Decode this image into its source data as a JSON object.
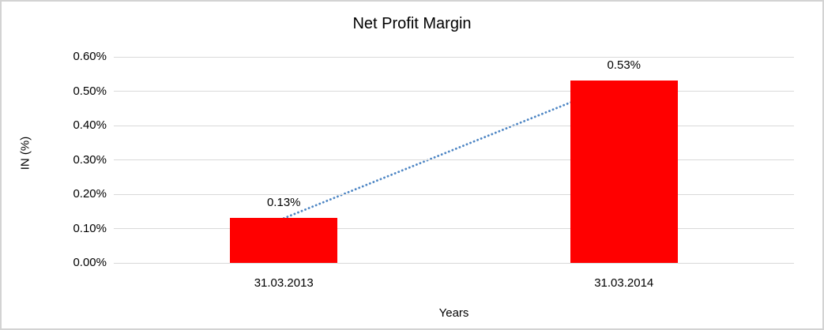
{
  "chart_data": {
    "type": "bar",
    "title": "Net Profit Margin",
    "xlabel": "Years",
    "ylabel": "IN (%)",
    "categories": [
      "31.03.2013",
      "31.03.2014"
    ],
    "values": [
      0.13,
      0.53
    ],
    "data_labels": [
      "0.13%",
      "0.53%"
    ],
    "y_ticks": [
      {
        "label": "0.60%",
        "value": 0.6
      },
      {
        "label": "0.50%",
        "value": 0.5
      },
      {
        "label": "0.40%",
        "value": 0.4
      },
      {
        "label": "0.30%",
        "value": 0.3
      },
      {
        "label": "0.20%",
        "value": 0.2
      },
      {
        "label": "0.10%",
        "value": 0.1
      },
      {
        "label": "0.00%",
        "value": 0.0
      }
    ],
    "ylim": [
      0,
      0.6
    ],
    "grid": true,
    "legend": false,
    "colors": {
      "bar": "#ff0000",
      "gridline": "#d9d9d9",
      "trendline": "#4e86c4",
      "text": "#000000",
      "background": "#ffffff",
      "border": "#d3d3d3"
    },
    "trendline": {
      "style": "dotted",
      "from_category_index": 0,
      "to_category_index": 1,
      "from_value": 0.13,
      "to_value": 0.53
    }
  }
}
